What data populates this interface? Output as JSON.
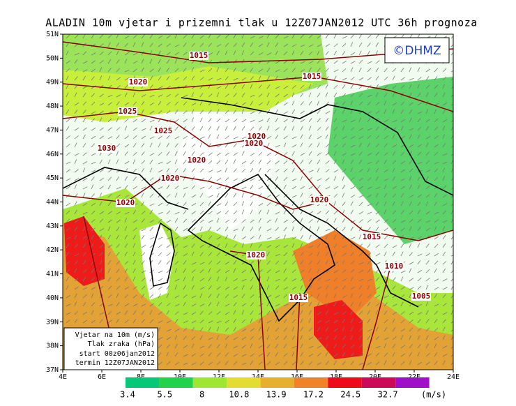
{
  "header": {
    "title": "ALADIN 10m vjetar i prizemni tlak u 12Z07JAN2012 UTC 36h prognoza"
  },
  "logo": "©DHMZ",
  "lat_labels": [
    "37N",
    "38N",
    "39N",
    "40N",
    "41N",
    "42N",
    "43N",
    "44N",
    "45N",
    "46N",
    "47N",
    "48N",
    "49N",
    "50N",
    "51N"
  ],
  "lon_labels": [
    "4E",
    "6E",
    "8E",
    "10E",
    "12E",
    "14E",
    "16E",
    "18E",
    "20E",
    "22E",
    "24E"
  ],
  "isobar_labels": [
    "1015",
    "1020",
    "1015",
    "1025",
    "1025",
    "1020",
    "1020",
    "1030",
    "1020",
    "1020",
    "1020",
    "1020",
    "1015",
    "1020",
    "1010",
    "1015",
    "1005"
  ],
  "info_box": [
    "Vjetar na 10m (m/s)",
    "Tlak zraka (hPa)",
    "start 00z06jan2012",
    "termin 12Z07JAN2012"
  ],
  "colorbar": {
    "colors": [
      "#06c878",
      "#22d24a",
      "#9ee632",
      "#e4dc32",
      "#e4b02e",
      "#f08228",
      "#ee0a1a",
      "#cc0a5a",
      "#a010c8"
    ],
    "labels": [
      "3.4",
      "5.5",
      "8",
      "10.8",
      "13.9",
      "17.2",
      "24.5",
      "32.7"
    ],
    "unit": "(m/s)"
  }
}
